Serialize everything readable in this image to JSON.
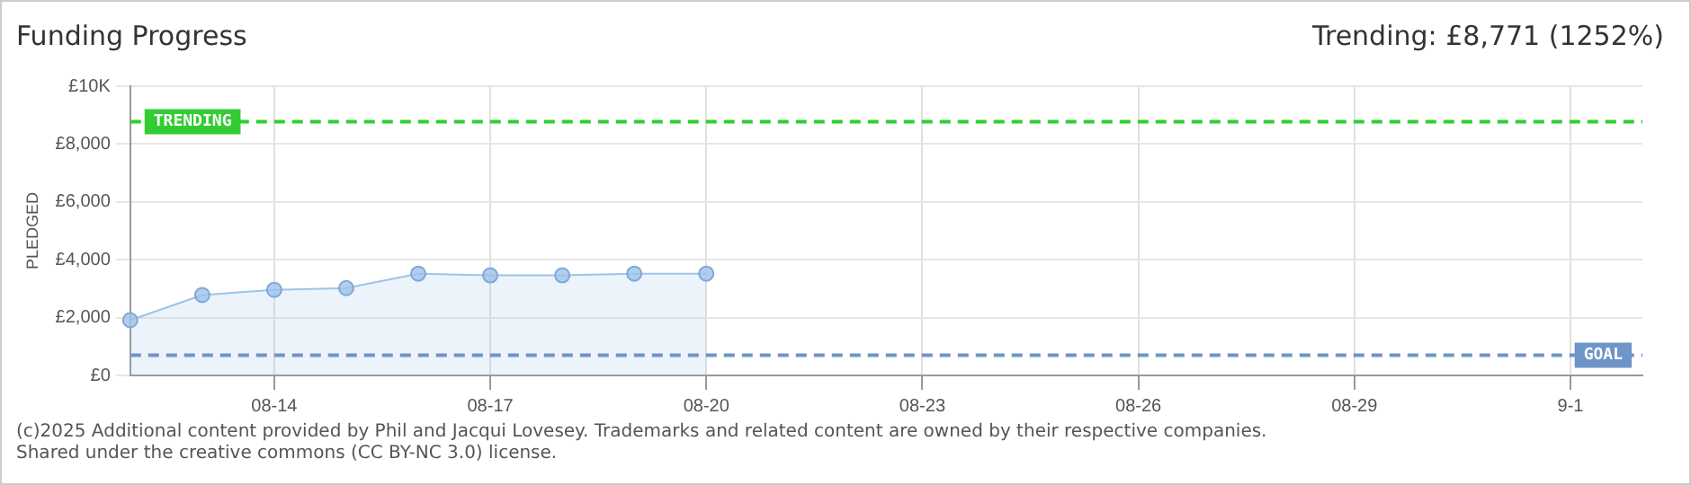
{
  "chart_data": {
    "type": "area",
    "title": "Funding Progress",
    "ylabel": "PLEDGED",
    "annotations": [
      "Trending:  £8,771 (1252%)",
      "(c)2025 Additional content provided by Phil and Jacqui Lovesey. Trademarks and related content are owned by their respective companies.",
      "Shared under the creative commons (CC BY-NC 3.0) license."
    ],
    "categories": [
      null,
      null,
      "08-14",
      null,
      null,
      "08-17",
      null,
      null,
      "08-20",
      null,
      null,
      "08-23",
      null,
      null,
      "08-26",
      null,
      null,
      "08-29",
      null,
      null,
      "9-1",
      null
    ],
    "series": [
      {
        "color": "#9ec3e8",
        "values": [
          1910,
          2780,
          2960,
          3020,
          3520,
          3460,
          3460,
          3520,
          3520,
          null,
          null,
          null,
          null,
          null,
          null,
          null,
          null,
          null,
          null,
          null,
          null,
          null
        ]
      }
    ],
    "ylim": [
      0,
      10000
    ],
    "yticks": [
      {
        "value": 0,
        "label": "£0"
      },
      {
        "value": 2000,
        "label": "£2,000"
      },
      {
        "value": 4000,
        "label": "£4,000"
      },
      {
        "value": 6000,
        "label": "£6,000"
      },
      {
        "value": 8000,
        "label": "£8,000"
      },
      {
        "value": 10000,
        "label": "£10K"
      }
    ],
    "ref_lines": [
      {
        "axis": "y",
        "value": 8771,
        "label": "TRENDING",
        "color": "#33cc33",
        "line_style": "dashed"
      },
      {
        "axis": "y",
        "value": 700,
        "label": "GOAL",
        "color": "#6f94c8",
        "line_style": "dashed"
      }
    ],
    "grid": true,
    "legend": false,
    "marker": "circle"
  }
}
